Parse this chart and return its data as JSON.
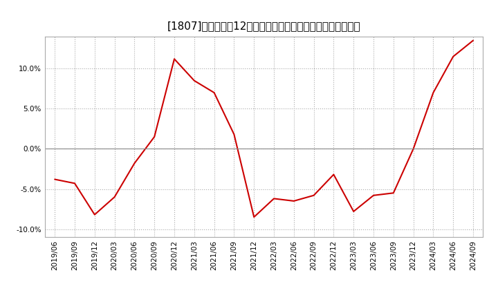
{
  "title": "[1807]　売上高の12か月移動合計の対前年同期増減率の推移",
  "line_color": "#cc0000",
  "bg_color": "#ffffff",
  "plot_bg_color": "#ffffff",
  "grid_color": "#aaaaaa",
  "title_fontsize": 11,
  "tick_fontsize": 7.5,
  "dates": [
    "2019/06",
    "2019/09",
    "2019/12",
    "2020/03",
    "2020/06",
    "2020/09",
    "2020/12",
    "2021/03",
    "2021/06",
    "2021/09",
    "2021/12",
    "2022/03",
    "2022/06",
    "2022/09",
    "2022/12",
    "2023/03",
    "2023/06",
    "2023/09",
    "2023/12",
    "2024/03",
    "2024/06",
    "2024/09"
  ],
  "values": [
    -3.8,
    -4.3,
    -8.2,
    -6.0,
    -1.8,
    1.5,
    11.2,
    8.5,
    7.0,
    1.8,
    -8.5,
    -6.2,
    -6.5,
    -5.8,
    -3.2,
    -7.8,
    -5.8,
    -5.5,
    0.0,
    7.0,
    11.5,
    13.5
  ],
  "ylim": [
    -11,
    14
  ],
  "yticks": [
    -10,
    -5,
    0,
    5,
    10
  ],
  "ytick_labels": [
    "-10.0%",
    "-5.0%",
    "0.0%",
    "5.0%",
    "10.0%"
  ]
}
